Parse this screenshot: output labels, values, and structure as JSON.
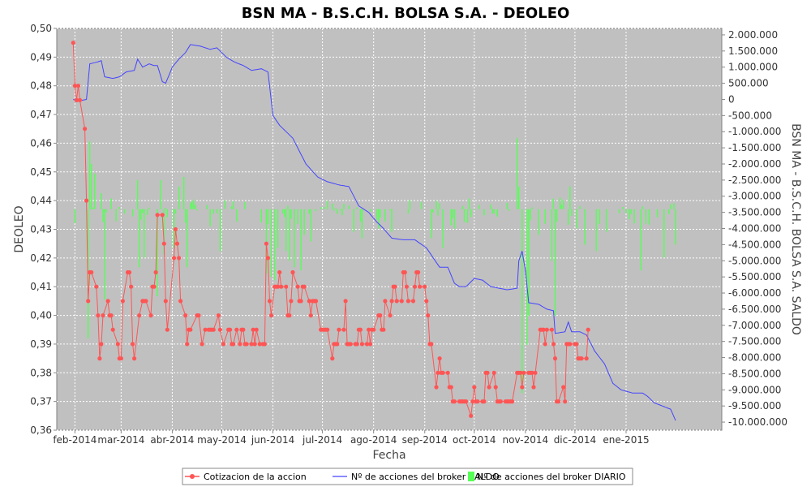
{
  "chart_data": {
    "type": "line",
    "title": "BSN MA - B.S.C.H. BOLSA S.A. - DEOLEO",
    "xlabel": "Fecha",
    "ylabel": "DEOLEO",
    "y2label": "BSN MA - B.S.C.H. BOLSA S.A. SALDO",
    "xlim": [
      "2014-01-21",
      "2015-02-28"
    ],
    "ylim": [
      0.36,
      0.5
    ],
    "y2lim": [
      -10250000,
      2200000
    ],
    "x_ticks": [
      {
        "date": "2014-02-01",
        "label": "feb-2014"
      },
      {
        "date": "2014-03-01",
        "label": "mar-2014"
      },
      {
        "date": "2014-04-01",
        "label": "abr-2014"
      },
      {
        "date": "2014-05-01",
        "label": "may-2014"
      },
      {
        "date": "2014-06-01",
        "label": "jun-2014"
      },
      {
        "date": "2014-07-01",
        "label": "jul-2014"
      },
      {
        "date": "2014-08-01",
        "label": "ago-2014"
      },
      {
        "date": "2014-09-01",
        "label": "sep-2014"
      },
      {
        "date": "2014-10-01",
        "label": "oct-2014"
      },
      {
        "date": "2014-11-01",
        "label": "nov-2014"
      },
      {
        "date": "2014-12-01",
        "label": "dic-2014"
      },
      {
        "date": "2015-01-01",
        "label": "ene-2015"
      }
    ],
    "y_ticks": [
      {
        "value": 0.36,
        "label": "0,36"
      },
      {
        "value": 0.37,
        "label": "0,37"
      },
      {
        "value": 0.38,
        "label": "0,38"
      },
      {
        "value": 0.39,
        "label": "0,39"
      },
      {
        "value": 0.4,
        "label": "0,40"
      },
      {
        "value": 0.41,
        "label": "0,41"
      },
      {
        "value": 0.42,
        "label": "0,42"
      },
      {
        "value": 0.43,
        "label": "0,43"
      },
      {
        "value": 0.44,
        "label": "0,44"
      },
      {
        "value": 0.45,
        "label": "0,45"
      },
      {
        "value": 0.46,
        "label": "0,46"
      },
      {
        "value": 0.47,
        "label": "0,47"
      },
      {
        "value": 0.48,
        "label": "0,48"
      },
      {
        "value": 0.49,
        "label": "0,49"
      },
      {
        "value": 0.5,
        "label": "0,50"
      }
    ],
    "y2_ticks": [
      {
        "value": 2000000,
        "label": "2.000.000"
      },
      {
        "value": 1500000,
        "label": "1.500.000"
      },
      {
        "value": 1000000,
        "label": "1.000.000"
      },
      {
        "value": 500000,
        "label": "500.000"
      },
      {
        "value": 0,
        "label": "0"
      },
      {
        "value": -500000,
        "label": "-500.000"
      },
      {
        "value": -1000000,
        "label": "-1.000.000"
      },
      {
        "value": -1500000,
        "label": "-1.500.000"
      },
      {
        "value": -2000000,
        "label": "-2.000.000"
      },
      {
        "value": -2500000,
        "label": "-2.500.000"
      },
      {
        "value": -3000000,
        "label": "-3.000.000"
      },
      {
        "value": -3500000,
        "label": "-3.500.000"
      },
      {
        "value": -4000000,
        "label": "-4.000.000"
      },
      {
        "value": -4500000,
        "label": "-4.500.000"
      },
      {
        "value": -5000000,
        "label": "-5.000.000"
      },
      {
        "value": -5500000,
        "label": "-5.500.000"
      },
      {
        "value": -6000000,
        "label": "-6.000.000"
      },
      {
        "value": -6500000,
        "label": "-6.500.000"
      },
      {
        "value": -7000000,
        "label": "-7.000.000"
      },
      {
        "value": -7500000,
        "label": "-7.500.000"
      },
      {
        "value": -8000000,
        "label": "-8.000.000"
      },
      {
        "value": -8500000,
        "label": "-8.500.000"
      },
      {
        "value": -9000000,
        "label": "-9.000.000"
      },
      {
        "value": -9500000,
        "label": "-9.500.000"
      },
      {
        "value": -10000000,
        "label": "-10.000.000"
      }
    ],
    "grid": true,
    "legend_position": "bottom",
    "series": [
      {
        "name": "Cotizacion de la accion",
        "type": "line",
        "axis": "left",
        "color": "#ff5555",
        "marker": "circle",
        "points": [
          [
            "2014-01-31",
            0.495
          ],
          [
            "2014-02-01",
            0.48
          ],
          [
            "2014-02-02",
            0.475
          ],
          [
            "2014-02-03",
            0.48
          ],
          [
            "2014-02-04",
            0.475
          ],
          [
            "2014-02-07",
            0.465
          ],
          [
            "2014-02-08",
            0.44
          ],
          [
            "2014-02-09",
            0.405
          ],
          [
            "2014-02-10",
            0.415
          ],
          [
            "2014-02-11",
            0.415
          ],
          [
            "2014-02-14",
            0.41
          ],
          [
            "2014-02-15",
            0.4
          ],
          [
            "2014-02-16",
            0.385
          ],
          [
            "2014-02-17",
            0.39
          ],
          [
            "2014-02-18",
            0.4
          ],
          [
            "2014-02-21",
            0.405
          ],
          [
            "2014-02-22",
            0.4
          ],
          [
            "2014-02-23",
            0.4
          ],
          [
            "2014-02-24",
            0.395
          ],
          [
            "2014-02-27",
            0.39
          ],
          [
            "2014-02-28",
            0.385
          ],
          [
            "2014-03-01",
            0.385
          ],
          [
            "2014-03-02",
            0.405
          ],
          [
            "2014-03-05",
            0.415
          ],
          [
            "2014-03-06",
            0.415
          ],
          [
            "2014-03-07",
            0.41
          ],
          [
            "2014-03-08",
            0.39
          ],
          [
            "2014-03-09",
            0.385
          ],
          [
            "2014-03-12",
            0.4
          ],
          [
            "2014-03-14",
            0.405
          ],
          [
            "2014-03-15",
            0.405
          ],
          [
            "2014-03-16",
            0.405
          ],
          [
            "2014-03-19",
            0.4
          ],
          [
            "2014-03-20",
            0.41
          ],
          [
            "2014-03-21",
            0.41
          ],
          [
            "2014-03-22",
            0.415
          ],
          [
            "2014-03-23",
            0.435
          ],
          [
            "2014-03-26",
            0.435
          ],
          [
            "2014-03-27",
            0.425
          ],
          [
            "2014-03-28",
            0.405
          ],
          [
            "2014-03-29",
            0.395
          ],
          [
            "2014-04-02",
            0.42
          ],
          [
            "2014-04-03",
            0.43
          ],
          [
            "2014-04-04",
            0.425
          ],
          [
            "2014-04-05",
            0.42
          ],
          [
            "2014-04-06",
            0.405
          ],
          [
            "2014-04-09",
            0.4
          ],
          [
            "2014-04-10",
            0.39
          ],
          [
            "2014-04-11",
            0.395
          ],
          [
            "2014-04-12",
            0.395
          ],
          [
            "2014-04-16",
            0.4
          ],
          [
            "2014-04-17",
            0.4
          ],
          [
            "2014-04-19",
            0.39
          ],
          [
            "2014-04-21",
            0.395
          ],
          [
            "2014-04-23",
            0.395
          ],
          [
            "2014-04-24",
            0.395
          ],
          [
            "2014-04-25",
            0.395
          ],
          [
            "2014-04-26",
            0.395
          ],
          [
            "2014-04-29",
            0.4
          ],
          [
            "2014-04-30",
            0.395
          ],
          [
            "2014-05-02",
            0.39
          ],
          [
            "2014-05-05",
            0.395
          ],
          [
            "2014-05-06",
            0.395
          ],
          [
            "2014-05-07",
            0.39
          ],
          [
            "2014-05-08",
            0.39
          ],
          [
            "2014-05-10",
            0.395
          ],
          [
            "2014-05-12",
            0.39
          ],
          [
            "2014-05-13",
            0.395
          ],
          [
            "2014-05-14",
            0.395
          ],
          [
            "2014-05-15",
            0.39
          ],
          [
            "2014-05-16",
            0.39
          ],
          [
            "2014-05-19",
            0.39
          ],
          [
            "2014-05-20",
            0.395
          ],
          [
            "2014-05-21",
            0.39
          ],
          [
            "2014-05-22",
            0.395
          ],
          [
            "2014-05-24",
            0.39
          ],
          [
            "2014-05-26",
            0.39
          ],
          [
            "2014-05-27",
            0.39
          ],
          [
            "2014-05-28",
            0.425
          ],
          [
            "2014-05-29",
            0.42
          ],
          [
            "2014-05-30",
            0.405
          ],
          [
            "2014-05-31",
            0.4
          ],
          [
            "2014-06-02",
            0.41
          ],
          [
            "2014-06-03",
            0.41
          ],
          [
            "2014-06-04",
            0.41
          ],
          [
            "2014-06-05",
            0.415
          ],
          [
            "2014-06-06",
            0.41
          ],
          [
            "2014-06-09",
            0.41
          ],
          [
            "2014-06-10",
            0.4
          ],
          [
            "2014-06-11",
            0.4
          ],
          [
            "2014-06-12",
            0.405
          ],
          [
            "2014-06-13",
            0.415
          ],
          [
            "2014-06-16",
            0.41
          ],
          [
            "2014-06-17",
            0.405
          ],
          [
            "2014-06-18",
            0.405
          ],
          [
            "2014-06-19",
            0.41
          ],
          [
            "2014-06-20",
            0.41
          ],
          [
            "2014-06-23",
            0.405
          ],
          [
            "2014-06-24",
            0.4
          ],
          [
            "2014-06-25",
            0.405
          ],
          [
            "2014-06-26",
            0.405
          ],
          [
            "2014-06-27",
            0.405
          ],
          [
            "2014-06-30",
            0.395
          ],
          [
            "2014-07-01",
            0.395
          ],
          [
            "2014-07-02",
            0.395
          ],
          [
            "2014-07-03",
            0.395
          ],
          [
            "2014-07-04",
            0.395
          ],
          [
            "2014-07-07",
            0.385
          ],
          [
            "2014-07-08",
            0.39
          ],
          [
            "2014-07-09",
            0.39
          ],
          [
            "2014-07-10",
            0.39
          ],
          [
            "2014-07-11",
            0.395
          ],
          [
            "2014-07-14",
            0.395
          ],
          [
            "2014-07-15",
            0.405
          ],
          [
            "2014-07-16",
            0.39
          ],
          [
            "2014-07-17",
            0.39
          ],
          [
            "2014-07-18",
            0.39
          ],
          [
            "2014-07-21",
            0.39
          ],
          [
            "2014-07-22",
            0.39
          ],
          [
            "2014-07-23",
            0.395
          ],
          [
            "2014-07-24",
            0.395
          ],
          [
            "2014-07-25",
            0.39
          ],
          [
            "2014-07-28",
            0.39
          ],
          [
            "2014-07-29",
            0.395
          ],
          [
            "2014-07-30",
            0.39
          ],
          [
            "2014-07-31",
            0.395
          ],
          [
            "2014-08-01",
            0.395
          ],
          [
            "2014-08-04",
            0.4
          ],
          [
            "2014-08-05",
            0.4
          ],
          [
            "2014-08-06",
            0.395
          ],
          [
            "2014-08-07",
            0.395
          ],
          [
            "2014-08-08",
            0.405
          ],
          [
            "2014-08-11",
            0.4
          ],
          [
            "2014-08-12",
            0.405
          ],
          [
            "2014-08-13",
            0.41
          ],
          [
            "2014-08-14",
            0.41
          ],
          [
            "2014-08-15",
            0.405
          ],
          [
            "2014-08-18",
            0.405
          ],
          [
            "2014-08-19",
            0.415
          ],
          [
            "2014-08-20",
            0.415
          ],
          [
            "2014-08-21",
            0.41
          ],
          [
            "2014-08-22",
            0.405
          ],
          [
            "2014-08-25",
            0.405
          ],
          [
            "2014-08-26",
            0.41
          ],
          [
            "2014-08-27",
            0.415
          ],
          [
            "2014-08-28",
            0.415
          ],
          [
            "2014-08-29",
            0.41
          ],
          [
            "2014-09-01",
            0.41
          ],
          [
            "2014-09-02",
            0.405
          ],
          [
            "2014-09-03",
            0.4
          ],
          [
            "2014-09-04",
            0.39
          ],
          [
            "2014-09-05",
            0.39
          ],
          [
            "2014-09-08",
            0.375
          ],
          [
            "2014-09-09",
            0.38
          ],
          [
            "2014-09-10",
            0.385
          ],
          [
            "2014-09-11",
            0.38
          ],
          [
            "2014-09-12",
            0.38
          ],
          [
            "2014-09-15",
            0.38
          ],
          [
            "2014-09-16",
            0.375
          ],
          [
            "2014-09-17",
            0.375
          ],
          [
            "2014-09-18",
            0.37
          ],
          [
            "2014-09-19",
            0.37
          ],
          [
            "2014-09-22",
            0.37
          ],
          [
            "2014-09-23",
            0.37
          ],
          [
            "2014-09-24",
            0.37
          ],
          [
            "2014-09-25",
            0.37
          ],
          [
            "2014-09-26",
            0.37
          ],
          [
            "2014-09-29",
            0.365
          ],
          [
            "2014-09-30",
            0.37
          ],
          [
            "2014-10-01",
            0.375
          ],
          [
            "2014-10-02",
            0.37
          ],
          [
            "2014-10-03",
            0.37
          ],
          [
            "2014-10-06",
            0.37
          ],
          [
            "2014-10-07",
            0.37
          ],
          [
            "2014-10-08",
            0.38
          ],
          [
            "2014-10-09",
            0.38
          ],
          [
            "2014-10-10",
            0.375
          ],
          [
            "2014-10-13",
            0.38
          ],
          [
            "2014-10-14",
            0.375
          ],
          [
            "2014-10-15",
            0.37
          ],
          [
            "2014-10-16",
            0.37
          ],
          [
            "2014-10-17",
            0.37
          ],
          [
            "2014-10-20",
            0.37
          ],
          [
            "2014-10-21",
            0.37
          ],
          [
            "2014-10-22",
            0.37
          ],
          [
            "2014-10-23",
            0.37
          ],
          [
            "2014-10-24",
            0.37
          ],
          [
            "2014-10-27",
            0.38
          ],
          [
            "2014-10-28",
            0.38
          ],
          [
            "2014-10-29",
            0.38
          ],
          [
            "2014-10-30",
            0.375
          ],
          [
            "2014-10-31",
            0.38
          ],
          [
            "2014-11-03",
            0.38
          ],
          [
            "2014-11-04",
            0.38
          ],
          [
            "2014-11-05",
            0.38
          ],
          [
            "2014-11-06",
            0.375
          ],
          [
            "2014-11-07",
            0.38
          ],
          [
            "2014-11-10",
            0.395
          ],
          [
            "2014-11-11",
            0.395
          ],
          [
            "2014-11-12",
            0.395
          ],
          [
            "2014-11-13",
            0.39
          ],
          [
            "2014-11-14",
            0.395
          ],
          [
            "2014-11-17",
            0.395
          ],
          [
            "2014-11-18",
            0.39
          ],
          [
            "2014-11-19",
            0.385
          ],
          [
            "2014-11-20",
            0.37
          ],
          [
            "2014-11-21",
            0.37
          ],
          [
            "2014-11-24",
            0.375
          ],
          [
            "2014-11-25",
            0.37
          ],
          [
            "2014-11-26",
            0.39
          ],
          [
            "2014-11-27",
            0.39
          ],
          [
            "2014-11-28",
            0.39
          ],
          [
            "2014-12-01",
            0.39
          ],
          [
            "2014-12-02",
            0.39
          ],
          [
            "2014-12-03",
            0.385
          ],
          [
            "2014-12-04",
            0.385
          ],
          [
            "2014-12-05",
            0.385
          ],
          [
            "2014-12-08",
            0.385
          ],
          [
            "2014-12-09",
            0.395
          ]
        ]
      },
      {
        "name": "Nº de acciones del broker SALDO",
        "type": "line",
        "axis": "right",
        "color": "#4444ff",
        "points": []
      },
      {
        "name": "Nº de acciones del broker DIARIO",
        "type": "bar",
        "axis": "right",
        "color": "#55ff55",
        "points": []
      }
    ]
  }
}
